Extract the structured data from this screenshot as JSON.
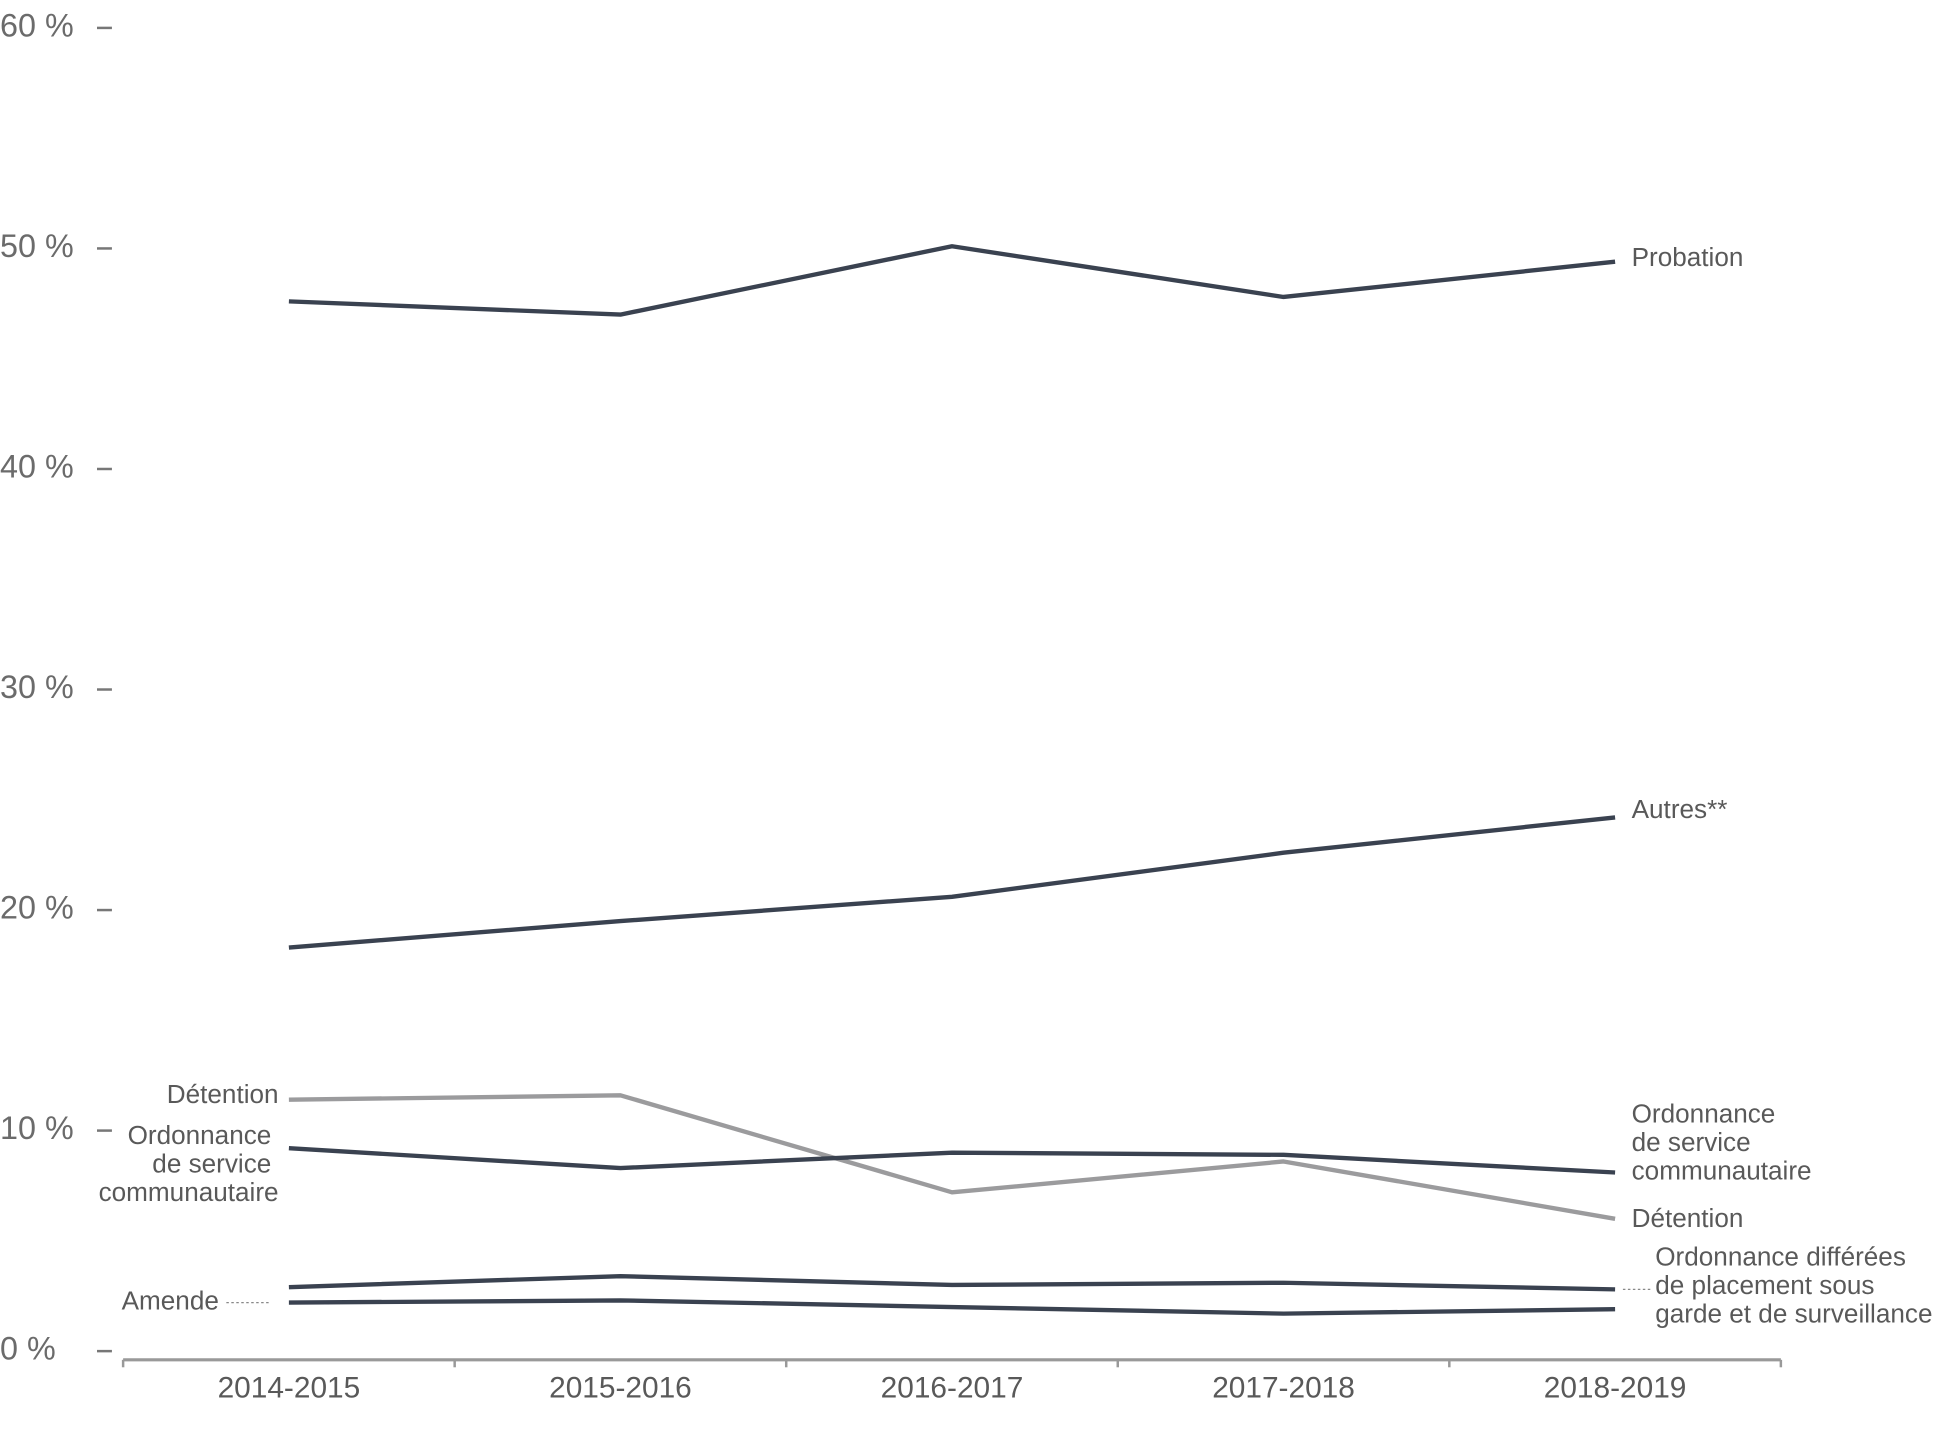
{
  "chart_data": {
    "type": "line",
    "categories": [
      "2014-2015",
      "2015-2016",
      "2016-2017",
      "2017-2018",
      "2018-2019"
    ],
    "series": [
      {
        "name": "Probation",
        "color": "#3a4250",
        "values": [
          47.6,
          47.0,
          50.1,
          47.8,
          49.4
        ]
      },
      {
        "name": "Autres**",
        "color": "#3a4250",
        "values": [
          18.3,
          19.5,
          20.6,
          22.6,
          24.2
        ]
      },
      {
        "name": "Détention",
        "color": "#9b9b9d",
        "values": [
          11.4,
          11.6,
          7.2,
          8.6,
          6.0
        ]
      },
      {
        "name": "Ordonnance de service communautaire",
        "color": "#3a4250",
        "values": [
          9.2,
          8.3,
          9.0,
          8.9,
          8.1
        ]
      },
      {
        "name": "Ordonnance différées de placement sous garde et de surveillance",
        "color": "#3a4250",
        "values": [
          2.9,
          3.4,
          3.0,
          3.1,
          2.8
        ]
      },
      {
        "name": "Amende",
        "color": "#3a4250",
        "values": [
          2.2,
          2.3,
          2.0,
          1.7,
          1.9
        ]
      }
    ],
    "ylim": [
      0,
      60
    ],
    "yticks": [
      {
        "value": 0,
        "label": "0 %"
      },
      {
        "value": 10,
        "label": "10 %"
      },
      {
        "value": 20,
        "label": "20 %"
      },
      {
        "value": 30,
        "label": "30 %"
      },
      {
        "value": 40,
        "label": "40 %"
      },
      {
        "value": 50,
        "label": "50 %"
      },
      {
        "value": 60,
        "label": "60 %"
      }
    ]
  }
}
